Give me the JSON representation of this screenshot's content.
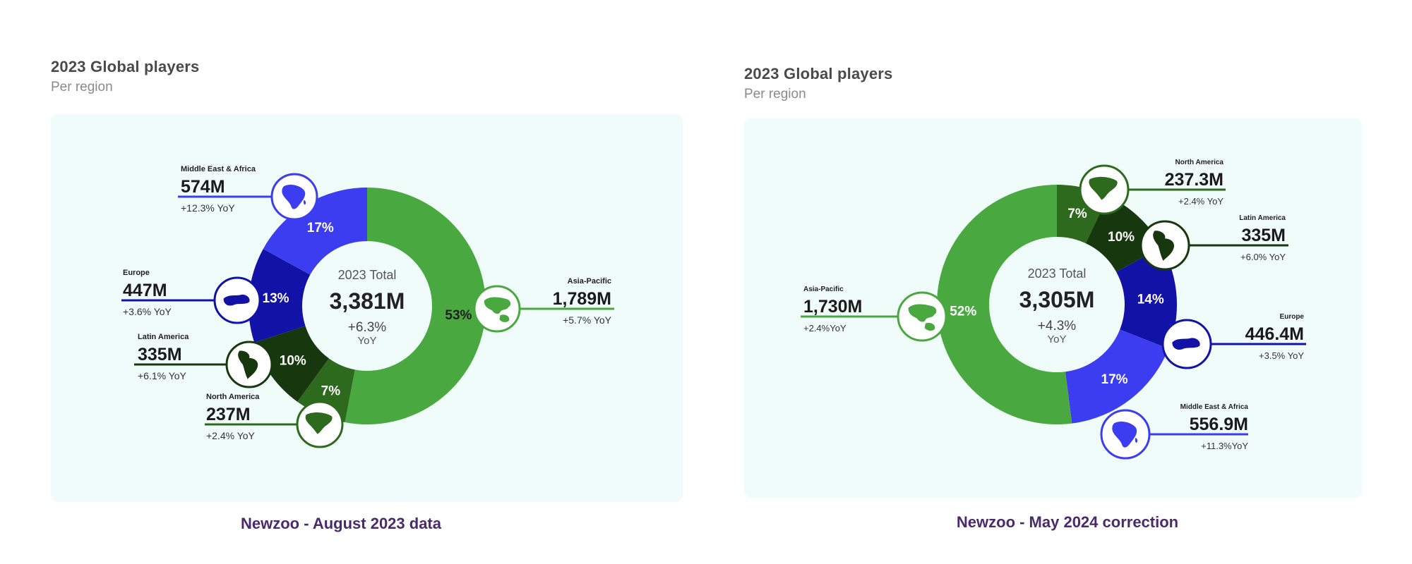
{
  "colors": {
    "asia_pacific": "#4aa840",
    "north_america": "#2d6a1e",
    "latin_america": "#17380f",
    "europe": "#1212a6",
    "middle_east_africa": "#3c3cf0",
    "card_bg": "#effcf9",
    "caption": "#4b2a6b"
  },
  "icons": {
    "asia_pacific": "asia-pacific-map-icon",
    "north_america": "north-america-map-icon",
    "latin_america": "latin-america-map-icon",
    "europe": "europe-map-icon",
    "middle_east_africa": "africa-map-icon"
  },
  "left": {
    "title": "2023 Global players",
    "subtitle": "Per region",
    "caption": "Newzoo - August 2023 data",
    "center": {
      "title": "2023 Total",
      "value": "3,381M",
      "yoy": "+6.3%",
      "unit": "YoY"
    }
  },
  "right": {
    "title": "2023 Global players",
    "subtitle": "Per region",
    "caption": "Newzoo - May 2024 correction",
    "center": {
      "title": "2023 Total",
      "value": "3,305M",
      "yoy": "+4.3%",
      "unit": "YoY"
    }
  },
  "chart_data": [
    {
      "type": "pie",
      "title": "2023 Global players",
      "subtitle": "Per region",
      "total": "3,381M",
      "total_yoy": "+6.3%",
      "slices": [
        {
          "key": "asia_pacific",
          "region": "Asia-Pacific",
          "share": 53,
          "share_label": "53%",
          "value": 1789,
          "value_label": "1,789M",
          "yoy": "+5.7% YoY"
        },
        {
          "key": "north_america",
          "region": "North America",
          "share": 7,
          "share_label": "7%",
          "value": 237,
          "value_label": "237M",
          "yoy": "+2.4% YoY"
        },
        {
          "key": "latin_america",
          "region": "Latin America",
          "share": 10,
          "share_label": "10%",
          "value": 335,
          "value_label": "335M",
          "yoy": "+6.1% YoY"
        },
        {
          "key": "europe",
          "region": "Europe",
          "share": 13,
          "share_label": "13%",
          "value": 447,
          "value_label": "447M",
          "yoy": "+3.6% YoY"
        },
        {
          "key": "middle_east_africa",
          "region": "Middle East & Africa",
          "share": 17,
          "share_label": "17%",
          "value": 574,
          "value_label": "574M",
          "yoy": "+12.3% YoY"
        }
      ]
    },
    {
      "type": "pie",
      "title": "2023 Global players",
      "subtitle": "Per region",
      "total": "3,305M",
      "total_yoy": "+4.3%",
      "slices": [
        {
          "key": "north_america",
          "region": "North America",
          "share": 7,
          "share_label": "7%",
          "value": 237.3,
          "value_label": "237.3M",
          "yoy": "+2.4% YoY"
        },
        {
          "key": "latin_america",
          "region": "Latin America",
          "share": 10,
          "share_label": "10%",
          "value": 335,
          "value_label": "335M",
          "yoy": "+6.0% YoY"
        },
        {
          "key": "europe",
          "region": "Europe",
          "share": 14,
          "share_label": "14%",
          "value": 446.4,
          "value_label": "446.4M",
          "yoy": "+3.5% YoY"
        },
        {
          "key": "middle_east_africa",
          "region": "Middle East & Africa",
          "share": 17,
          "share_label": "17%",
          "value": 556.9,
          "value_label": "556.9M",
          "yoy": "+11.3%YoY"
        },
        {
          "key": "asia_pacific",
          "region": "Asia-Pacific",
          "share": 52,
          "share_label": "52%",
          "value": 1730,
          "value_label": "1,730M",
          "yoy": "+2.4%YoY"
        }
      ]
    }
  ]
}
